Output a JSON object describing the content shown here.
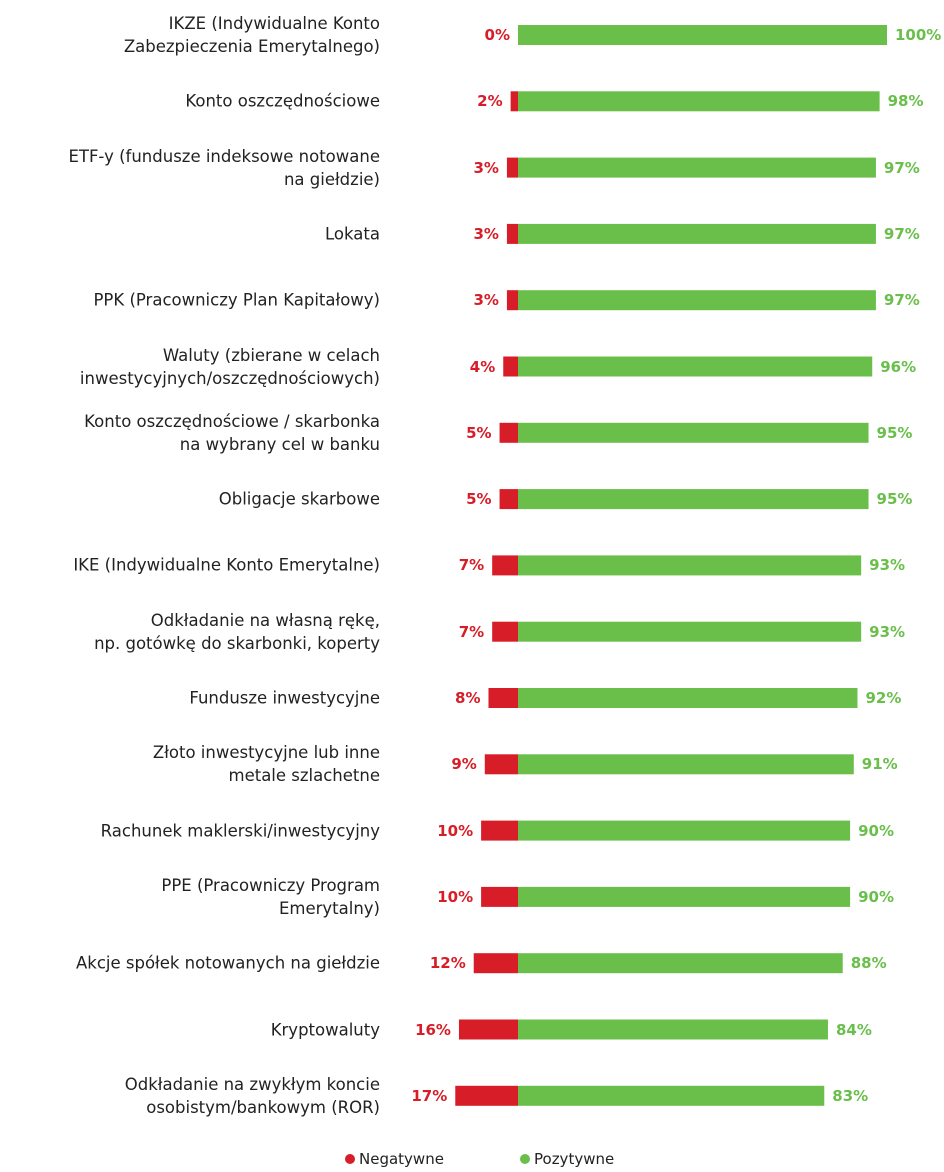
{
  "chart_data": {
    "type": "diverging-bar",
    "categories": [
      "IKZE (Indywidualne Konto\nZabezpieczenia Emerytalnego)",
      "Konto oszczędnościowe",
      "ETF-y (fundusze indeksowe notowane\nna giełdzie)",
      "Lokata",
      "PPK (Pracowniczy Plan Kapitałowy)",
      "Waluty (zbierane w celach\ninwestycyjnych/oszczędnościowych)",
      "Konto oszczędnościowe / skarbonka\nna wybrany cel w banku",
      "Obligacje skarbowe",
      "IKE (Indywidualne Konto Emerytalne)",
      "Odkładanie na własną rękę,\nnp. gotówkę do skarbonki, koperty",
      "Fundusze inwestycyjne",
      "Złoto inwestycyjne lub inne\nmetale szlachetne",
      "Rachunek maklerski/inwestycyjny",
      "PPE (Pracowniczy Program\nEmerytalny)",
      "Akcje spółek notowanych na giełdzie",
      "Kryptowaluty",
      "Odkładanie na zwykłym koncie\nosobistym/bankowym (ROR)"
    ],
    "series": [
      {
        "name": "Negatywne",
        "color": "#d71e28",
        "values": [
          0,
          2,
          3,
          3,
          3,
          4,
          5,
          5,
          7,
          7,
          8,
          9,
          10,
          10,
          12,
          16,
          17
        ],
        "value_labels": [
          "0%",
          "2%",
          "3%",
          "3%",
          "3%",
          "4%",
          "5%",
          "5%",
          "7%",
          "7%",
          "8%",
          "9%",
          "10%",
          "10%",
          "12%",
          "16%",
          "17%"
        ]
      },
      {
        "name": "Pozytywne",
        "color": "#6abf4b",
        "values": [
          100,
          98,
          97,
          97,
          97,
          96,
          95,
          95,
          93,
          93,
          92,
          91,
          90,
          90,
          88,
          84,
          83
        ],
        "value_labels": [
          "100%",
          "98%",
          "97%",
          "97%",
          "97%",
          "96%",
          "95%",
          "95%",
          "93%",
          "93%",
          "92%",
          "91%",
          "90%",
          "90%",
          "88%",
          "84%",
          "83%"
        ]
      }
    ],
    "legend": "bottom"
  }
}
